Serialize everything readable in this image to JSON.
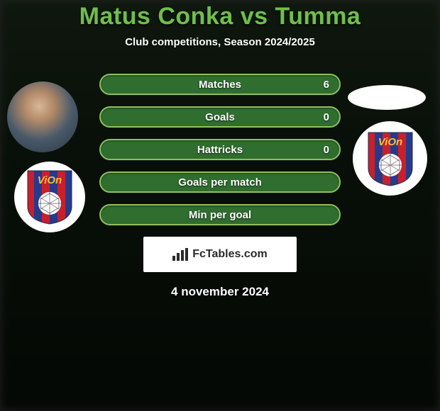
{
  "title": {
    "text": "Matus Conka vs Tumma",
    "color": "#6fbf4a"
  },
  "subtitle": "Club competitions, Season 2024/2025",
  "bars": {
    "track_color": "#2f6e2f",
    "border_color": "#8fbf5f",
    "items": [
      {
        "label": "Matches",
        "value": "6"
      },
      {
        "label": "Goals",
        "value": "0"
      },
      {
        "label": "Hattricks",
        "value": "0"
      },
      {
        "label": "Goals per match",
        "value": ""
      },
      {
        "label": "Min per goal",
        "value": ""
      }
    ]
  },
  "club_badge": {
    "stripe_red": "#c8202b",
    "stripe_blue": "#273a8a",
    "text": "ViOn",
    "text_color": "#f2c23a",
    "ball_color": "#ffffff"
  },
  "footer": {
    "brand": "FcTables.com",
    "date": "4 november 2024"
  },
  "colors": {
    "background_top": "#2e4a2e",
    "background_mid": "#1a2e1a",
    "background_bot": "#0f1a0f",
    "text_white": "#ffffff"
  }
}
